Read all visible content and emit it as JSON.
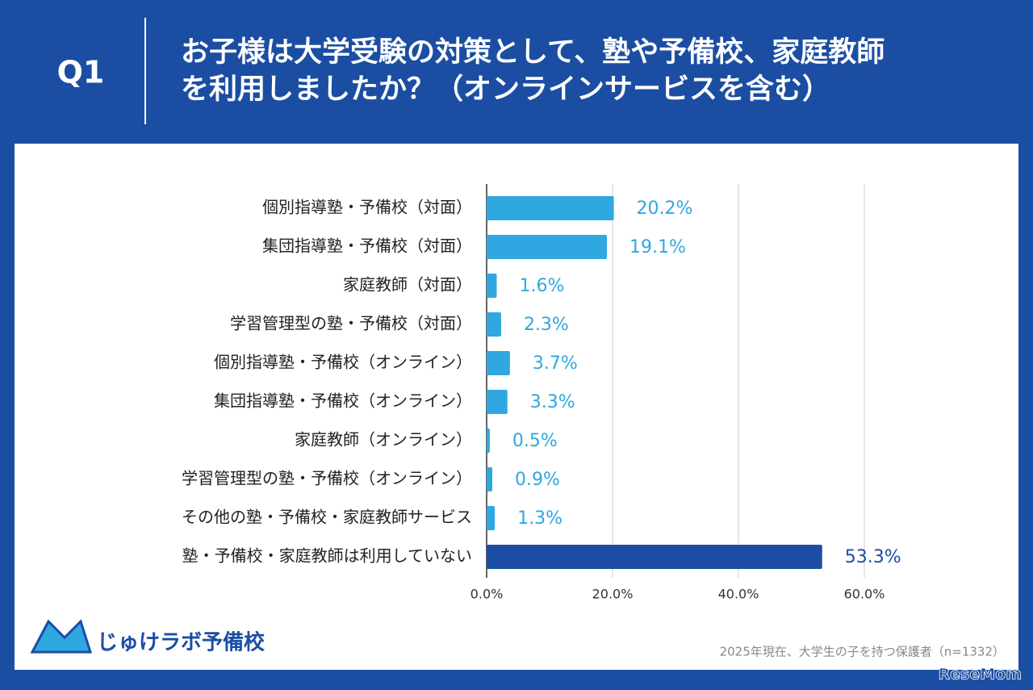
{
  "chart_data": {
    "type": "bar",
    "orientation": "horizontal",
    "question": "Q1",
    "title": [
      "お子様は大学受験の対策として、塾や予備校、家庭教師",
      "を利用しましたか？（オンラインサービスを含む）"
    ],
    "categories": [
      "個別指導塾・予備校（対面）",
      "集団指導塾・予備校（対面）",
      "家庭教師（対面）",
      "学習管理型の塾・予備校（対面）",
      "個別指導塾・予備校（オンライン）",
      "集団指導塾・予備校（オンライン）",
      "家庭教師（オンライン）",
      "学習管理型の塾・予備校（オンライン）",
      "その他の塾・予備校・家庭教師サービス",
      "塾・予備校・家庭教師は利用していない"
    ],
    "values": [
      20.2,
      19.1,
      1.6,
      2.3,
      3.7,
      3.3,
      0.5,
      0.9,
      1.3,
      53.3
    ],
    "value_labels": [
      "20.2%",
      "19.1%",
      "1.6%",
      "2.3%",
      "3.7%",
      "3.3%",
      "0.5%",
      "0.9%",
      "1.3%",
      "53.3%"
    ],
    "colors": [
      "#2fa7e0",
      "#2fa7e0",
      "#2fa7e0",
      "#2fa7e0",
      "#2fa7e0",
      "#2fa7e0",
      "#2fa7e0",
      "#2fa7e0",
      "#2fa7e0",
      "#1b4ea3"
    ],
    "xlim": [
      0,
      60
    ],
    "xticks": [
      {
        "value": 0,
        "label": "0.0%"
      },
      {
        "value": 20,
        "label": "20.0%"
      },
      {
        "value": 40,
        "label": "40.0%"
      },
      {
        "value": 60,
        "label": "60.0%"
      }
    ],
    "grid": true,
    "brand": "じゅけラボ予備校",
    "note": "2025年現在、大学生の子を持つ保護者（n=1332）",
    "watermark": "ReseMom"
  }
}
